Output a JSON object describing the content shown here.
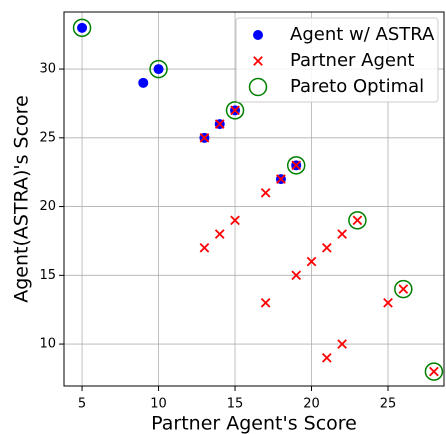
{
  "chart_data": {
    "type": "scatter",
    "xlabel": "Partner Agent's Score",
    "ylabel": "Agent(ASTRA)'s Score",
    "xlim": [
      3.82,
      28.66
    ],
    "ylim": [
      6.95,
      34.15
    ],
    "xticks": [
      5,
      10,
      15,
      20,
      25
    ],
    "yticks": [
      10,
      15,
      20,
      25,
      30
    ],
    "grid": true,
    "legend": "upper right",
    "series": [
      {
        "name": "Agent w/ ASTRA",
        "color": "#0000ff",
        "marker": "dot",
        "x": [
          5,
          9,
          10,
          13,
          14,
          15,
          18,
          19
        ],
        "values": [
          33,
          29,
          30,
          25,
          26,
          27,
          22,
          23
        ]
      },
      {
        "name": "Partner Agent",
        "color": "#ff0000",
        "marker": "cross",
        "x": [
          13,
          14,
          15,
          18,
          19,
          13,
          14,
          15,
          17,
          17,
          19,
          20,
          21,
          22,
          23,
          21,
          22,
          25,
          26,
          28
        ],
        "values": [
          25,
          26,
          27,
          22,
          23,
          17,
          18,
          19,
          21,
          13,
          15,
          16,
          17,
          18,
          19,
          9,
          10,
          13,
          14,
          8
        ]
      },
      {
        "name": "Pareto Optimal",
        "color": "#008000",
        "marker": "ring",
        "x": [
          5,
          10,
          15,
          19,
          23,
          26,
          28
        ],
        "values": [
          33,
          30,
          27,
          23,
          19,
          14,
          8
        ]
      }
    ]
  }
}
